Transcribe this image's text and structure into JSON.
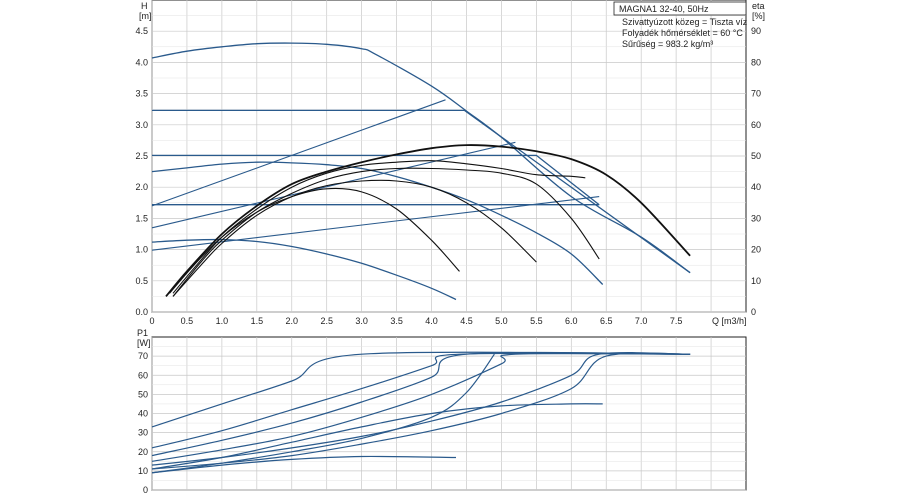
{
  "chart_data": [
    {
      "type": "line",
      "title": "MAGNA1 32-40, 50Hz",
      "annotations": [
        "Szivattyúzott közeg = Tiszta víz",
        "Folyadék hőmérséklet = 60 °C",
        "Sűrűség = 983.2 kg/m³"
      ],
      "xlabel": "Q [m3/h]",
      "ylabel": "H",
      "ylabel_unit": "[m]",
      "ylabel2": "eta",
      "ylabel2_unit": "[%]",
      "xlim": [
        0,
        8.5
      ],
      "ylim": [
        0,
        5
      ],
      "y2lim": [
        0,
        100
      ],
      "x_ticks": [
        "0",
        "0.5",
        "1.0",
        "1.5",
        "2.0",
        "2.5",
        "3.0",
        "3.5",
        "4.0",
        "4.5",
        "5.0",
        "5.5",
        "6.0",
        "6.5",
        "7.0",
        "7.5"
      ],
      "y_ticks": [
        "0.0",
        "0.5",
        "1.0",
        "1.5",
        "2.0",
        "2.5",
        "3.0",
        "3.5",
        "4.0",
        "4.5"
      ],
      "y2_ticks": [
        "0",
        "10",
        "20",
        "30",
        "40",
        "50",
        "60",
        "70",
        "80",
        "90"
      ],
      "grid": true,
      "head_curves": [
        {
          "x": [
            0,
            0.5,
            1.0,
            1.5,
            2.0,
            2.5,
            3.0,
            3.2,
            4.0,
            4.5,
            5.0,
            6.0,
            7.0,
            7.7
          ],
          "y": [
            4.07,
            4.18,
            4.25,
            4.3,
            4.31,
            4.29,
            4.22,
            4.13,
            3.62,
            3.22,
            2.8,
            1.85,
            1.2,
            0.63
          ]
        },
        {
          "x": [
            0,
            4.47,
            7.7
          ],
          "y": [
            3.23,
            3.23,
            0.63
          ]
        },
        {
          "x": [
            0,
            5.5,
            6.4
          ],
          "y": [
            2.51,
            2.51,
            1.72
          ]
        },
        {
          "x": [
            0,
            6.4
          ],
          "y": [
            1.72,
            1.72
          ]
        },
        {
          "x": [
            0,
            0.5,
            1.0,
            1.5,
            2.0,
            2.5,
            3.0,
            3.5,
            4.0,
            4.5,
            5.0,
            5.5,
            6.0,
            6.45
          ],
          "y": [
            2.25,
            2.31,
            2.37,
            2.4,
            2.39,
            2.36,
            2.3,
            2.17,
            2.0,
            1.8,
            1.55,
            1.27,
            0.93,
            0.44
          ]
        },
        {
          "x": [
            0,
            0.5,
            1.0,
            1.5,
            2.0,
            2.5,
            3.0,
            3.5,
            4.0,
            4.35
          ],
          "y": [
            1.12,
            1.15,
            1.16,
            1.13,
            1.05,
            0.93,
            0.78,
            0.59,
            0.38,
            0.2
          ]
        }
      ],
      "system_curves": [
        {
          "x": [
            0,
            4.2
          ],
          "y": [
            1.7,
            3.4
          ]
        },
        {
          "x": [
            0,
            5.2
          ],
          "y": [
            1.35,
            2.72
          ]
        },
        {
          "x": [
            0,
            6.4
          ],
          "y": [
            0.99,
            1.85
          ]
        }
      ],
      "efficiency_curves": [
        {
          "x": [
            0.2,
            0.5,
            1.0,
            1.5,
            2.0,
            2.5,
            3.0,
            3.5,
            4.0,
            4.5,
            5.0,
            5.5,
            6.0,
            6.5,
            7.0,
            7.7
          ],
          "y": [
            5,
            13,
            25,
            34,
            41,
            45,
            48,
            50.5,
            52.5,
            53.5,
            53,
            51.5,
            49,
            44,
            35,
            18
          ]
        },
        {
          "x": [
            0.3,
            0.6,
            1.0,
            1.5,
            2.0,
            2.5,
            3.0,
            3.5,
            4.0,
            4.5,
            5.0,
            5.5,
            6.0,
            6.2
          ],
          "y": [
            6,
            14,
            24,
            33,
            40,
            44.5,
            47,
            48,
            48.5,
            47.5,
            46,
            44,
            43.5,
            43
          ]
        },
        {
          "x": [
            0.3,
            0.7,
            1.0,
            1.5,
            2.0,
            2.5,
            3.0,
            3.5,
            4.0,
            4.5,
            5.0,
            5.5,
            6.0,
            6.4
          ],
          "y": [
            5,
            16,
            23,
            32,
            38,
            42.5,
            45,
            46,
            46,
            45.5,
            44.5,
            41,
            30,
            17
          ]
        },
        {
          "x": [
            0.3,
            0.7,
            1.0,
            1.5,
            2.0,
            2.5,
            3.0,
            3.5,
            4.0,
            4.5,
            5.0,
            5.5
          ],
          "y": [
            5,
            15,
            22,
            31,
            37,
            40.5,
            42,
            42,
            40,
            35,
            27,
            16
          ]
        },
        {
          "x": [
            0.25,
            0.6,
            1.0,
            1.5,
            2.0,
            2.5,
            3.0,
            3.5,
            4.0,
            4.4
          ],
          "y": [
            6,
            15,
            24,
            32,
            37,
            39.5,
            38.5,
            33,
            23,
            13
          ]
        }
      ]
    },
    {
      "type": "line",
      "ylabel": "P1",
      "ylabel_unit": "[W]",
      "xlim": [
        0,
        8.5
      ],
      "ylim": [
        0,
        80
      ],
      "y_ticks": [
        "0",
        "10",
        "20",
        "30",
        "40",
        "50",
        "60",
        "70"
      ],
      "grid": true,
      "power_curves": [
        {
          "x": [
            0,
            1.0,
            2.0,
            3.0,
            7.7
          ],
          "y": [
            33,
            45,
            57,
            71,
            71
          ]
        },
        {
          "x": [
            0,
            1.0,
            2.0,
            3.0,
            4.0,
            4.4,
            7.7
          ],
          "y": [
            22,
            31,
            42,
            53,
            65,
            71,
            71
          ]
        },
        {
          "x": [
            0,
            1.0,
            2.0,
            3.0,
            4.0,
            4.5,
            7.7
          ],
          "y": [
            18,
            26,
            35,
            46,
            59,
            71,
            71
          ]
        },
        {
          "x": [
            0,
            1.0,
            2.0,
            3.0,
            4.0,
            5.0,
            5.2,
            7.7
          ],
          "y": [
            15,
            21,
            28,
            38,
            50,
            66,
            71,
            71
          ]
        },
        {
          "x": [
            0,
            1.0,
            2.0,
            3.0,
            4.0,
            5.0,
            6.0,
            6.4,
            7.7
          ],
          "y": [
            13,
            17,
            22,
            28,
            36,
            46,
            60,
            71,
            71
          ]
        },
        {
          "x": [
            0,
            1.0,
            2.0,
            3.0,
            4.0,
            5.0,
            6.0,
            6.5,
            7.7
          ],
          "y": [
            11,
            14,
            18,
            24,
            31,
            40,
            53,
            70,
            71
          ]
        },
        {
          "x": [
            0,
            1.0,
            2.0,
            3.0,
            4.0,
            4.5,
            4.9
          ],
          "y": [
            9,
            14,
            20,
            27,
            38,
            51,
            71
          ]
        },
        {
          "x": [
            0,
            1.0,
            2.0,
            3.0,
            4.0,
            5.0,
            6.0,
            6.45
          ],
          "y": [
            11,
            17,
            25,
            33,
            40,
            44,
            45,
            45
          ]
        },
        {
          "x": [
            0,
            1.0,
            2.0,
            3.0,
            4.35
          ],
          "y": [
            9,
            13,
            16,
            17.5,
            17
          ]
        }
      ]
    }
  ]
}
